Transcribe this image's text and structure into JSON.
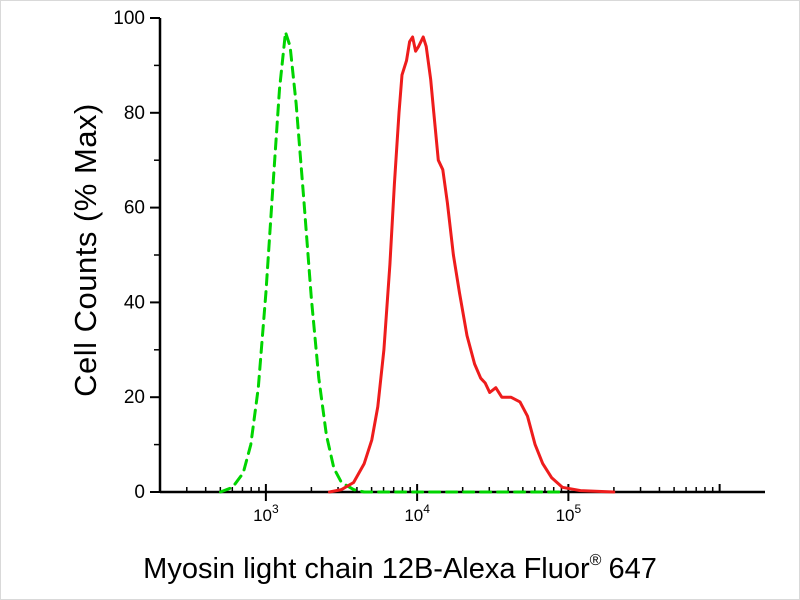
{
  "chart_data": {
    "type": "line",
    "title": "",
    "ylabel": "Cell Counts (% Max)",
    "xlabel": "Myosin light chain 12B-Alexa Fluor® 647",
    "xlabel_parts": {
      "main": "Myosin light chain 12B-Alexa Fluor",
      "sup": "®",
      "suffix": "647"
    },
    "x_scale": "log10",
    "xlim_log10": [
      2.3,
      6.3
    ],
    "ylim": [
      0,
      100
    ],
    "y_ticks": [
      0,
      20,
      40,
      60,
      80,
      100
    ],
    "y_minor_ticks": [
      10,
      30,
      50,
      70,
      90
    ],
    "x_major_tick_exponents": [
      3,
      4,
      5
    ],
    "grid": false,
    "legend": "none",
    "axis_color": "#000000",
    "series": [
      {
        "name": "green dashed (control)",
        "color": "#00d400",
        "dashed": true,
        "peak_x": 1350,
        "peak_y": 97,
        "points_log10x_y": [
          [
            2.7,
            0
          ],
          [
            2.78,
            1
          ],
          [
            2.85,
            4
          ],
          [
            2.9,
            10
          ],
          [
            2.95,
            22
          ],
          [
            3.0,
            42
          ],
          [
            3.05,
            66
          ],
          [
            3.09,
            85
          ],
          [
            3.13,
            97
          ],
          [
            3.16,
            94
          ],
          [
            3.2,
            82
          ],
          [
            3.25,
            62
          ],
          [
            3.3,
            41
          ],
          [
            3.35,
            24
          ],
          [
            3.4,
            12
          ],
          [
            3.45,
            5
          ],
          [
            3.5,
            2
          ],
          [
            3.58,
            0.5
          ],
          [
            3.65,
            0
          ],
          [
            4.95,
            0
          ]
        ]
      },
      {
        "name": "red solid (stained)",
        "color": "#ee1c1c",
        "dashed": false,
        "peak_x": 9500,
        "peak_y": 96,
        "points_log10x_y": [
          [
            3.42,
            0
          ],
          [
            3.5,
            0.5
          ],
          [
            3.58,
            2
          ],
          [
            3.65,
            6
          ],
          [
            3.7,
            11
          ],
          [
            3.74,
            18
          ],
          [
            3.78,
            30
          ],
          [
            3.82,
            48
          ],
          [
            3.85,
            65
          ],
          [
            3.88,
            80
          ],
          [
            3.9,
            88
          ],
          [
            3.93,
            91
          ],
          [
            3.95,
            95
          ],
          [
            3.97,
            96
          ],
          [
            3.99,
            93
          ],
          [
            4.01,
            94
          ],
          [
            4.04,
            96
          ],
          [
            4.06,
            94
          ],
          [
            4.09,
            87
          ],
          [
            4.11,
            80
          ],
          [
            4.14,
            70
          ],
          [
            4.17,
            68
          ],
          [
            4.2,
            61
          ],
          [
            4.24,
            50
          ],
          [
            4.28,
            42
          ],
          [
            4.33,
            33
          ],
          [
            4.38,
            27
          ],
          [
            4.42,
            24
          ],
          [
            4.45,
            23
          ],
          [
            4.48,
            21
          ],
          [
            4.52,
            22
          ],
          [
            4.56,
            20
          ],
          [
            4.62,
            20
          ],
          [
            4.68,
            19
          ],
          [
            4.73,
            16
          ],
          [
            4.78,
            10
          ],
          [
            4.83,
            6
          ],
          [
            4.89,
            3
          ],
          [
            4.96,
            1
          ],
          [
            5.08,
            0.3
          ],
          [
            5.3,
            0
          ]
        ]
      }
    ]
  }
}
